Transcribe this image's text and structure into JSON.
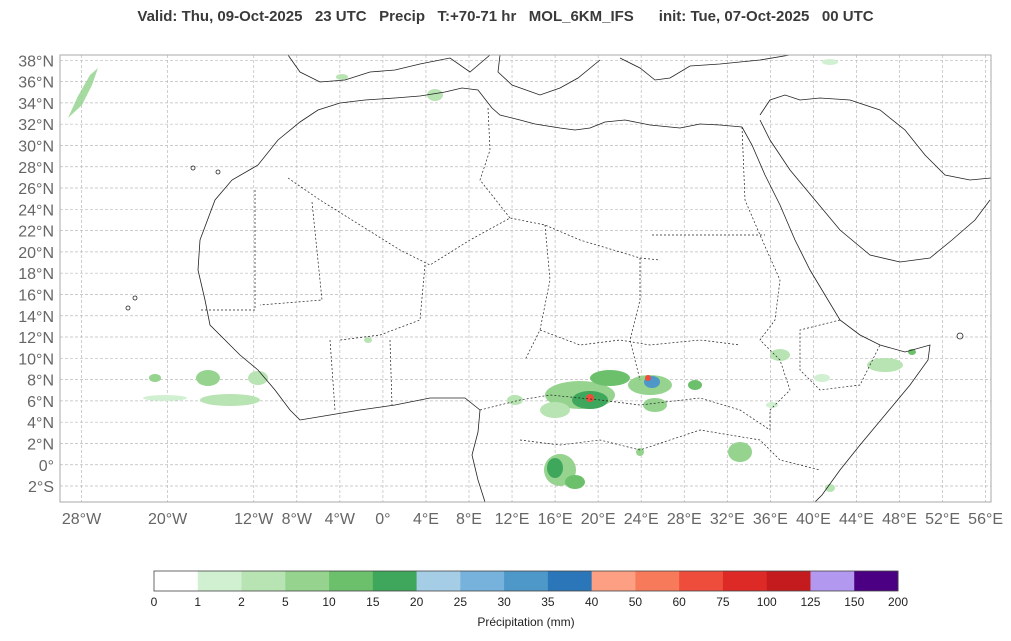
{
  "title": "Valid: Thu, 09-Oct-2025   23 UTC   Precip   T:+70-71 hr   MOL_6KM_IFS      init: Tue, 07-Oct-2025   00 UTC",
  "map": {
    "lon_range": [
      -30,
      56.5
    ],
    "lat_range": [
      -3.5,
      38.5
    ],
    "lat_ticks": [
      "38°N",
      "36°N",
      "34°N",
      "32°N",
      "30°N",
      "28°N",
      "26°N",
      "24°N",
      "22°N",
      "20°N",
      "18°N",
      "16°N",
      "14°N",
      "12°N",
      "10°N",
      "8°N",
      "6°N",
      "4°N",
      "2°N",
      "0°",
      "2°S"
    ],
    "lat_values": [
      38,
      36,
      34,
      32,
      30,
      28,
      26,
      24,
      22,
      20,
      18,
      16,
      14,
      12,
      10,
      8,
      6,
      4,
      2,
      0,
      -2
    ],
    "lon_ticks": [
      "28°W",
      "20°W",
      "12°W",
      "8°W",
      "4°W",
      "0°",
      "4°E",
      "8°E",
      "12°E",
      "16°E",
      "20°E",
      "24°E",
      "28°E",
      "32°E",
      "36°E",
      "40°E",
      "44°E",
      "48°E",
      "52°E",
      "56°E"
    ],
    "lon_values": [
      -28,
      -20,
      -12,
      -8,
      -4,
      0,
      4,
      8,
      12,
      16,
      20,
      24,
      28,
      32,
      36,
      40,
      44,
      48,
      52,
      56
    ],
    "grid": true
  },
  "colorbar": {
    "title": "Précipitation (mm)",
    "labels": [
      "0",
      "1",
      "2",
      "5",
      "10",
      "15",
      "20",
      "25",
      "30",
      "35",
      "40",
      "50",
      "60",
      "75",
      "100",
      "125",
      "150",
      "200"
    ],
    "colors": [
      "#ffffff",
      "#d1f0d1",
      "#b8e3b3",
      "#95d38f",
      "#6cc06c",
      "#3fa75c",
      "#a5cde6",
      "#76b2dc",
      "#4e97c9",
      "#2a76b8",
      "#fc9f83",
      "#f77b5b",
      "#ee4d3c",
      "#de2a26",
      "#c41b1f",
      "#b398f0",
      "#4b0084"
    ]
  }
}
